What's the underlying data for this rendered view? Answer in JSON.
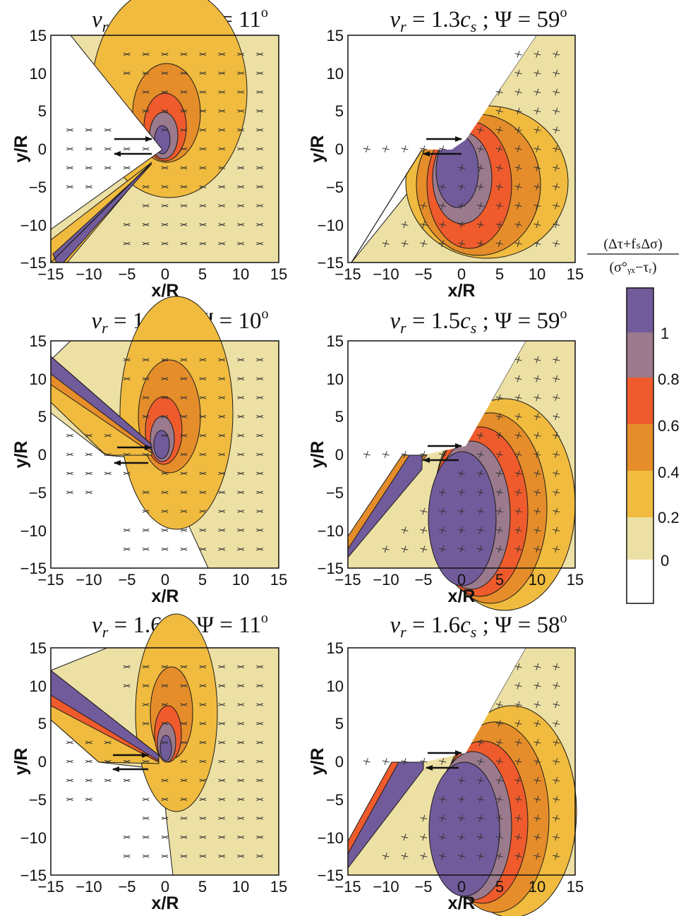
{
  "colors": {
    "levels": [
      "#ffffff",
      "#ede0a5",
      "#f0bb3e",
      "#e58d2a",
      "#ef5b2c",
      "#9a7a8c",
      "#725b9b"
    ],
    "contour_line": "#1a1a1a",
    "axis": "#111111"
  },
  "colorbar": {
    "label_numerator": "(Δτ+fₛΔσ)",
    "label_denominator": "(σ°ᵧₓ−τᵣ)",
    "tick_labels": [
      "1",
      "0.8",
      "0.6",
      "0.4",
      "0.2",
      "0"
    ],
    "levels": [
      0,
      0.2,
      0.4,
      0.6,
      0.8,
      1
    ]
  },
  "chart_data": [
    {
      "type": "contour",
      "title": "v_r = 1.3c_s ; Ψ = 11°",
      "title_parts": {
        "v": "v",
        "r": "r",
        "speed": " = 1.3",
        "c": "c",
        "s": "s",
        "sep": " ; ",
        "psi": "Ψ = 11",
        "deg": "o"
      },
      "xlabel": "x/R",
      "ylabel": "y/R",
      "xlim": [
        -15,
        15
      ],
      "ylim": [
        -15,
        15
      ],
      "xticks": [
        "−15",
        "−10",
        "−5",
        "0",
        "5",
        "10",
        "15"
      ],
      "yticks": [
        "15",
        "10",
        "5",
        "0",
        "−5",
        "−10",
        "−15"
      ],
      "rupture_speed_cs": 1.3,
      "psi_deg": 11,
      "fault_angle_deg": 146
    },
    {
      "type": "contour",
      "title": "v_r = 1.3c_s ; Ψ = 59°",
      "title_parts": {
        "v": "v",
        "r": "r",
        "speed": " = 1.3",
        "c": "c",
        "s": "s",
        "sep": " ; ",
        "psi": "Ψ = 59",
        "deg": "o"
      },
      "xlabel": "x/R",
      "ylabel": "y/R",
      "xlim": [
        -15,
        15
      ],
      "ylim": [
        -15,
        15
      ],
      "xticks": [
        "−15",
        "−10",
        "−5",
        "0",
        "5",
        "10",
        "15"
      ],
      "yticks": [
        "15",
        "10",
        "5",
        "0",
        "−5",
        "−10",
        "−15"
      ],
      "rupture_speed_cs": 1.3,
      "psi_deg": 59,
      "fault_angle_deg": 54
    },
    {
      "type": "contour",
      "title": "v_r = 1.5c_s ; Ψ = 10°",
      "title_parts": {
        "v": "v",
        "r": "r",
        "speed": " = 1.5",
        "c": "c",
        "s": "s",
        "sep": " ; ",
        "psi": "Ψ = 10",
        "deg": "o"
      },
      "xlabel": "x/R",
      "ylabel": "y/R",
      "xlim": [
        -15,
        15
      ],
      "ylim": [
        -15,
        15
      ],
      "xticks": [
        "−15",
        "−10",
        "−5",
        "0",
        "5",
        "10",
        "15"
      ],
      "yticks": [
        "15",
        "10",
        "5",
        "0",
        "−5",
        "−10",
        "−15"
      ],
      "rupture_speed_cs": 1.5,
      "psi_deg": 10,
      "fault_angle_deg": 146
    },
    {
      "type": "contour",
      "title": "v_r = 1.5c_s ; Ψ = 59°",
      "title_parts": {
        "v": "v",
        "r": "r",
        "speed": " = 1.5",
        "c": "c",
        "s": "s",
        "sep": " ; ",
        "psi": "Ψ = 59",
        "deg": "o"
      },
      "xlabel": "x/R",
      "ylabel": "y/R",
      "xlim": [
        -15,
        15
      ],
      "ylim": [
        -15,
        15
      ],
      "xticks": [
        "−15",
        "−10",
        "−5",
        "0",
        "5",
        "10",
        "15"
      ],
      "yticks": [
        "15",
        "10",
        "5",
        "0",
        "−5",
        "−10",
        "−15"
      ],
      "rupture_speed_cs": 1.5,
      "psi_deg": 59,
      "fault_angle_deg": 60
    },
    {
      "type": "contour",
      "title": "v_r = 1.6c_s ; Ψ = 11°",
      "title_parts": {
        "v": "v",
        "r": "r",
        "speed": " = 1.6",
        "c": "c",
        "s": "s",
        "sep": " ; ",
        "psi": "Ψ = 11",
        "deg": "o"
      },
      "xlabel": "x/R",
      "ylabel": "y/R",
      "xlim": [
        -15,
        15
      ],
      "ylim": [
        -15,
        15
      ],
      "xticks": [
        "−15",
        "−10",
        "−5",
        "0",
        "5",
        "10",
        "15"
      ],
      "yticks": [
        "15",
        "10",
        "5",
        "0",
        "−5",
        "−10",
        "−15"
      ],
      "rupture_speed_cs": 1.6,
      "psi_deg": 11,
      "fault_angle_deg": 148
    },
    {
      "type": "contour",
      "title": "v_r = 1.6c_s ; Ψ = 58°",
      "title_parts": {
        "v": "v",
        "r": "r",
        "speed": " = 1.6",
        "c": "c",
        "s": "s",
        "sep": " ; ",
        "psi": "Ψ = 58",
        "deg": "o"
      },
      "xlabel": "x/R",
      "ylabel": "y/R",
      "xlim": [
        -15,
        15
      ],
      "ylim": [
        -15,
        15
      ],
      "xticks": [
        "−15",
        "−10",
        "−5",
        "0",
        "5",
        "10",
        "15"
      ],
      "yticks": [
        "15",
        "10",
        "5",
        "0",
        "−5",
        "−10",
        "−15"
      ],
      "rupture_speed_cs": 1.6,
      "psi_deg": 58,
      "fault_angle_deg": 60
    }
  ]
}
